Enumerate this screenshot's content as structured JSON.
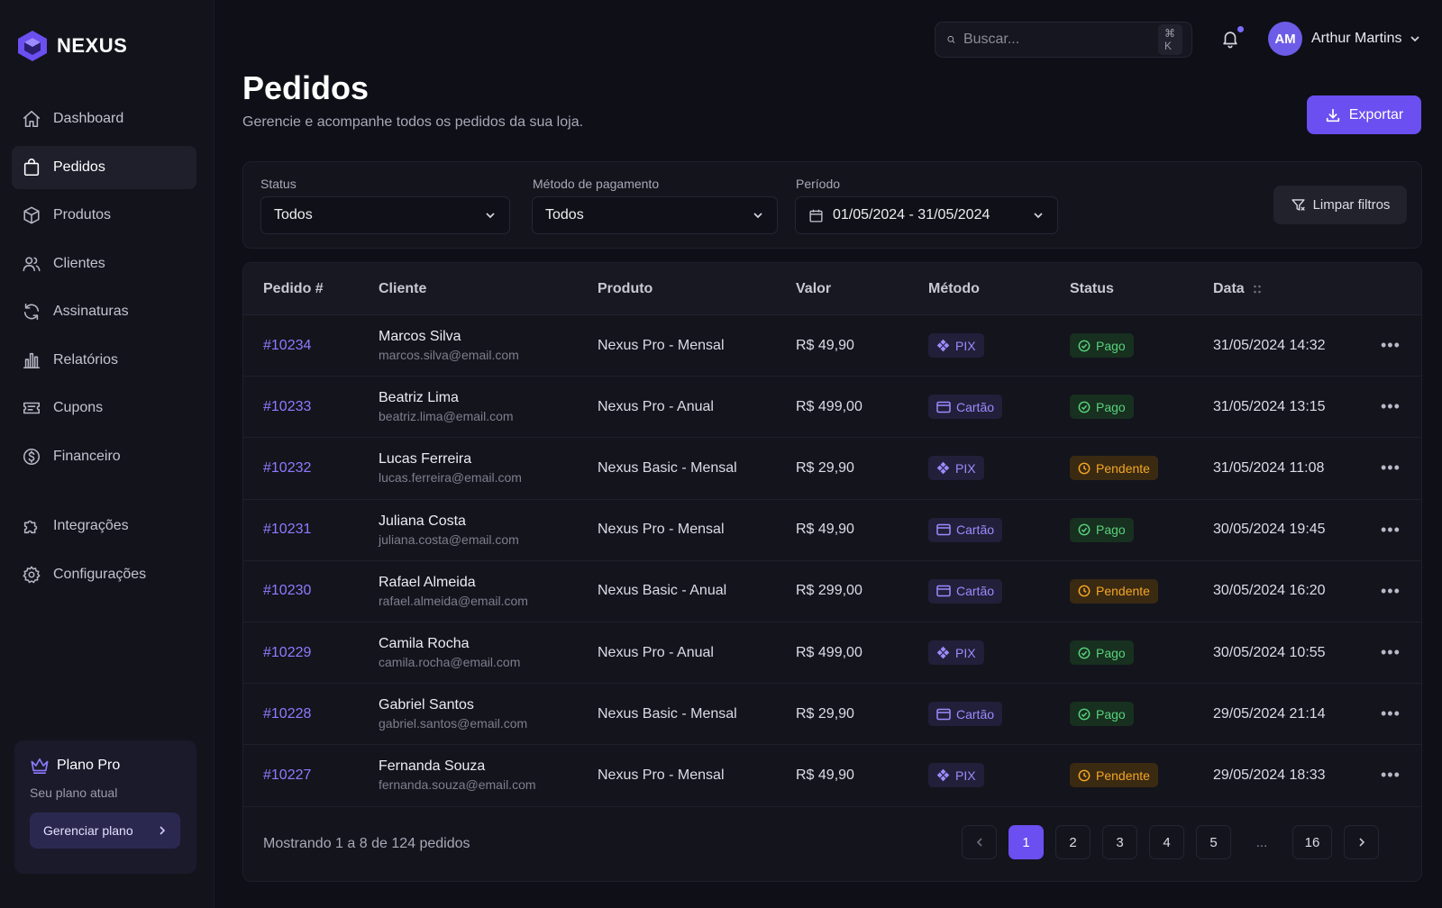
{
  "brand": {
    "name": "NEXUS"
  },
  "sidebar": {
    "items": [
      {
        "label": "Dashboard",
        "icon": "home-icon"
      },
      {
        "label": "Pedidos",
        "icon": "shopping-bag-icon",
        "active": true
      },
      {
        "label": "Produtos",
        "icon": "box-icon"
      },
      {
        "label": "Clientes",
        "icon": "users-icon"
      },
      {
        "label": "Assinaturas",
        "icon": "refresh-icon"
      },
      {
        "label": "Relatórios",
        "icon": "bar-chart-icon"
      },
      {
        "label": "Cupons",
        "icon": "ticket-icon"
      },
      {
        "label": "Financeiro",
        "icon": "dollar-circle-icon"
      }
    ],
    "bottom_items": [
      {
        "label": "Integrações",
        "icon": "puzzle-icon"
      },
      {
        "label": "Configurações",
        "icon": "gear-icon"
      }
    ],
    "plan": {
      "title": "Plano Pro",
      "subtitle": "Seu plano atual",
      "button": "Gerenciar plano"
    }
  },
  "topbar": {
    "search_placeholder": "Buscar...",
    "search_shortcut": "⌘ K",
    "user": {
      "initials": "AM",
      "name": "Arthur Martins"
    }
  },
  "header": {
    "title": "Pedidos",
    "subtitle": "Gerencie e acompanhe todos os pedidos da sua loja.",
    "export_label": "Exportar"
  },
  "filters": {
    "status": {
      "label": "Status",
      "value": "Todos"
    },
    "method": {
      "label": "Método de pagamento",
      "value": "Todos"
    },
    "period": {
      "label": "Período",
      "value": "01/05/2024 - 31/05/2024"
    },
    "clear_label": "Limpar filtros"
  },
  "table": {
    "columns": {
      "id": "Pedido #",
      "client": "Cliente",
      "product": "Produto",
      "value": "Valor",
      "method": "Método",
      "status": "Status",
      "date": "Data"
    },
    "rows": [
      {
        "id": "#10234",
        "name": "Marcos Silva",
        "email": "marcos.silva@email.com",
        "product": "Nexus Pro - Mensal",
        "value": "R$ 49,90",
        "method": "PIX",
        "status": "Pago",
        "date": "31/05/2024 14:32"
      },
      {
        "id": "#10233",
        "name": "Beatriz Lima",
        "email": "beatriz.lima@email.com",
        "product": "Nexus Pro - Anual",
        "value": "R$ 499,00",
        "method": "Cartão",
        "status": "Pago",
        "date": "31/05/2024 13:15"
      },
      {
        "id": "#10232",
        "name": "Lucas Ferreira",
        "email": "lucas.ferreira@email.com",
        "product": "Nexus Basic - Mensal",
        "value": "R$ 29,90",
        "method": "PIX",
        "status": "Pendente",
        "date": "31/05/2024 11:08"
      },
      {
        "id": "#10231",
        "name": "Juliana Costa",
        "email": "juliana.costa@email.com",
        "product": "Nexus Pro - Mensal",
        "value": "R$ 49,90",
        "method": "Cartão",
        "status": "Pago",
        "date": "30/05/2024 19:45"
      },
      {
        "id": "#10230",
        "name": "Rafael Almeida",
        "email": "rafael.almeida@email.com",
        "product": "Nexus Basic - Anual",
        "value": "R$ 299,00",
        "method": "Cartão",
        "status": "Pendente",
        "date": "30/05/2024 16:20"
      },
      {
        "id": "#10229",
        "name": "Camila Rocha",
        "email": "camila.rocha@email.com",
        "product": "Nexus Pro - Anual",
        "value": "R$ 499,00",
        "method": "PIX",
        "status": "Pago",
        "date": "30/05/2024 10:55"
      },
      {
        "id": "#10228",
        "name": "Gabriel Santos",
        "email": "gabriel.santos@email.com",
        "product": "Nexus Basic - Mensal",
        "value": "R$ 29,90",
        "method": "Cartão",
        "status": "Pago",
        "date": "29/05/2024 21:14"
      },
      {
        "id": "#10227",
        "name": "Fernanda Souza",
        "email": "fernanda.souza@email.com",
        "product": "Nexus Pro - Mensal",
        "value": "R$ 49,90",
        "method": "PIX",
        "status": "Pendente",
        "date": "29/05/2024 18:33"
      }
    ],
    "row_action_label": "•••"
  },
  "pagination": {
    "showing": "Mostrando 1 a 8 de 124 pedidos",
    "pages": [
      "1",
      "2",
      "3",
      "4",
      "5",
      "...",
      "16"
    ],
    "current": "1"
  },
  "colors": {
    "accent": "#6b4ff0",
    "link": "#8b7cff",
    "paid": "#58d17d",
    "pending": "#f5a524"
  }
}
